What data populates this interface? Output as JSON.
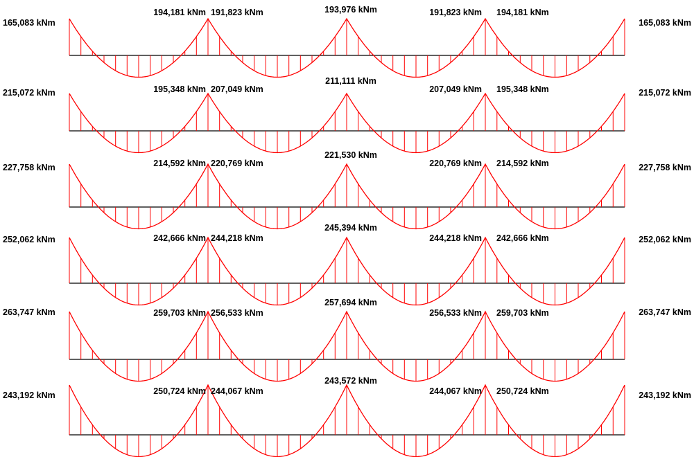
{
  "diagram": {
    "type": "bending-moment-diagrams",
    "unit": "kNm",
    "colors": {
      "moment_curve": "#ff0000",
      "axis": "#000000",
      "background": "#ffffff",
      "label": "#000000"
    },
    "rows": [
      {
        "moments": [
          "165,083 kNm",
          "194,181 kNm",
          "191,823 kNm",
          "193,976 kNm",
          "191,823 kNm",
          "194,181 kNm",
          "165,083 kNm"
        ]
      },
      {
        "moments": [
          "215,072 kNm",
          "195,348 kNm",
          "207,049 kNm",
          "211,111 kNm",
          "207,049 kNm",
          "195,348 kNm",
          "215,072 kNm"
        ]
      },
      {
        "moments": [
          "227,758 kNm",
          "214,592 kNm",
          "220,769 kNm",
          "221,530 kNm",
          "220,769 kNm",
          "214,592 kNm",
          "227,758 kNm"
        ]
      },
      {
        "moments": [
          "252,062 kNm",
          "242,666 kNm",
          "244,218 kNm",
          "245,394 kNm",
          "244,218 kNm",
          "242,666 kNm",
          "252,062 kNm"
        ]
      },
      {
        "moments": [
          "263,747 kNm",
          "259,703 kNm",
          "256,533 kNm",
          "257,694 kNm",
          "256,533 kNm",
          "259,703 kNm",
          "263,747 kNm"
        ]
      },
      {
        "moments": [
          "243,192 kNm",
          "250,724 kNm",
          "244,067 kNm",
          "243,572 kNm",
          "244,067 kNm",
          "250,724 kNm",
          "243,192 kNm"
        ]
      }
    ]
  }
}
